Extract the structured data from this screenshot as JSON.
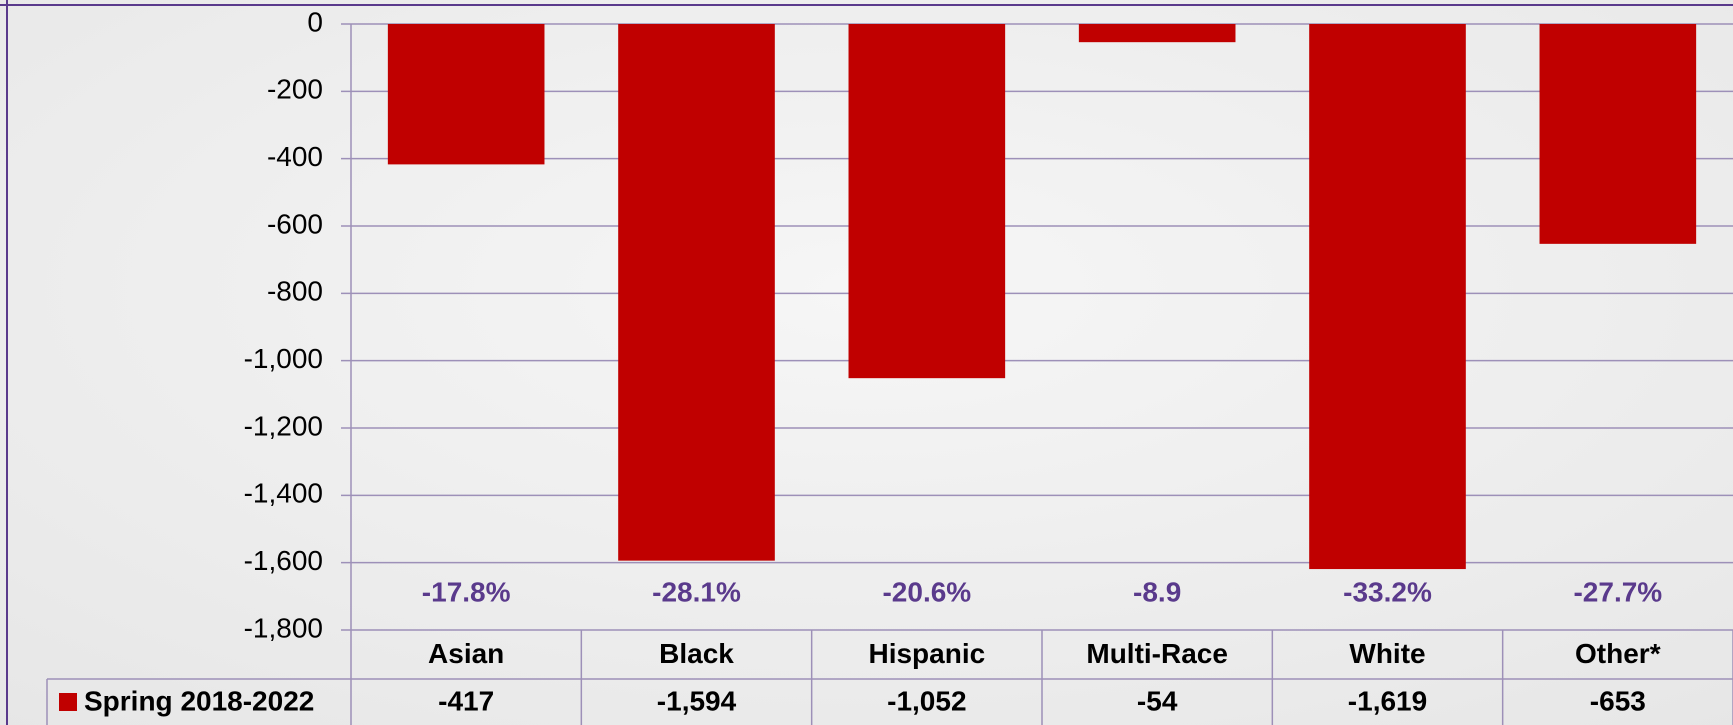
{
  "chart_data": {
    "type": "bar",
    "categories": [
      "Asian",
      "Black",
      "Hispanic",
      "Multi-Race",
      "White",
      "Other*"
    ],
    "series": [
      {
        "name": "Spring 2018-2022",
        "color": "#c00000",
        "values": [
          -417,
          -1594,
          -1052,
          -54,
          -1619,
          -653
        ],
        "value_labels": [
          "-417",
          "-1,594",
          "-1,052",
          "-54",
          "-1,619",
          "-653"
        ]
      }
    ],
    "annotations": [
      "-17.8%",
      "-28.1%",
      "-20.6%",
      "-8.9",
      "-33.2%",
      "-27.7%"
    ],
    "ylim": [
      -1800,
      0
    ],
    "yticks": [
      0,
      -200,
      -400,
      -600,
      -800,
      {
        "value": -1000,
        "label": "-1,000"
      },
      {
        "value": -1200,
        "label": "-1,200"
      },
      {
        "value": -1400,
        "label": "-1,400"
      },
      {
        "value": -1600,
        "label": "-1,600"
      },
      {
        "value": -1800,
        "label": "-1,800"
      }
    ],
    "grid": true,
    "legend": "table"
  }
}
